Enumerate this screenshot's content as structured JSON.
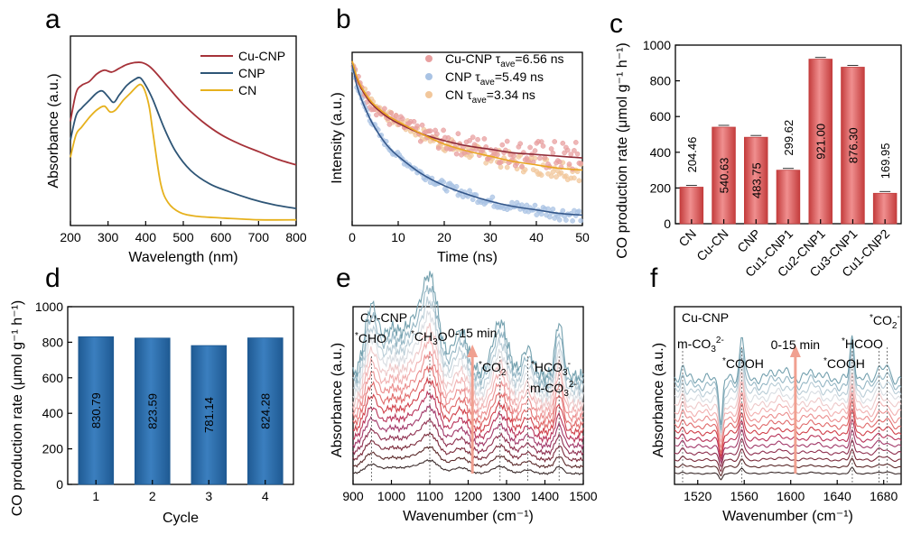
{
  "panels": [
    {
      "label": "a",
      "chart_data": {
        "type": "line",
        "xlabel": "Wavelength (nm)",
        "ylabel": "Absorbance (a.u.)",
        "xlim": [
          200,
          800
        ],
        "xticks": [
          200,
          300,
          400,
          500,
          600,
          700,
          800
        ],
        "series": [
          {
            "name": "Cu-CNP",
            "color": "#a63239",
            "x": [
              200,
              215,
              230,
              250,
              270,
              290,
              310,
              330,
              350,
              370,
              390,
              410,
              430,
              460,
              500,
              550,
              600,
              650,
              700,
              750,
              800
            ],
            "y": [
              0.55,
              0.7,
              0.74,
              0.76,
              0.8,
              0.82,
              0.81,
              0.83,
              0.85,
              0.86,
              0.86,
              0.84,
              0.8,
              0.73,
              0.64,
              0.55,
              0.48,
              0.43,
              0.39,
              0.35,
              0.32
            ]
          },
          {
            "name": "CNP",
            "color": "#2e5576",
            "x": [
              200,
              215,
              230,
              250,
              270,
              285,
              300,
              315,
              330,
              350,
              370,
              385,
              400,
              420,
              450,
              480,
              520,
              570,
              620,
              680,
              740,
              800
            ],
            "y": [
              0.45,
              0.58,
              0.62,
              0.66,
              0.7,
              0.71,
              0.68,
              0.65,
              0.69,
              0.74,
              0.77,
              0.78,
              0.74,
              0.66,
              0.51,
              0.39,
              0.29,
              0.22,
              0.18,
              0.14,
              0.11,
              0.09
            ]
          },
          {
            "name": "CN",
            "color": "#e6b11d",
            "x": [
              200,
              215,
              230,
              250,
              270,
              290,
              305,
              320,
              340,
              360,
              380,
              390,
              400,
              410,
              420,
              440,
              460,
              490,
              530,
              600,
              700,
              800
            ],
            "y": [
              0.36,
              0.48,
              0.52,
              0.57,
              0.61,
              0.63,
              0.6,
              0.61,
              0.66,
              0.7,
              0.74,
              0.74,
              0.7,
              0.62,
              0.48,
              0.22,
              0.12,
              0.07,
              0.05,
              0.04,
              0.03,
              0.03
            ]
          }
        ]
      }
    },
    {
      "label": "b",
      "chart_data": {
        "type": "scatter",
        "xlabel": "Time (ns)",
        "ylabel": "Intensity (a.u.)",
        "xlim": [
          0,
          50
        ],
        "xticks": [
          0,
          10,
          20,
          30,
          40,
          50
        ],
        "legend": [
          {
            "main": "Cu-CNP τ",
            "sub": "ave",
            "value": "=6.56 ns",
            "color": "#e89f9f"
          },
          {
            "main": "CNP τ",
            "sub": "ave",
            "value": "=5.49 ns",
            "color": "#a9c3e4"
          },
          {
            "main": "CN τ",
            "sub": "ave",
            "value": "=3.34 ns",
            "color": "#f2c79b"
          }
        ],
        "fits": [
          {
            "name": "Cu-CNP",
            "color": "#8e2a36",
            "t": [
              0,
              1,
              2,
              4,
              6,
              8,
              10,
              15,
              20,
              25,
              30,
              35,
              40,
              45,
              50
            ],
            "y": [
              1.0,
              0.9,
              0.84,
              0.76,
              0.71,
              0.67,
              0.64,
              0.58,
              0.54,
              0.51,
              0.49,
              0.47,
              0.46,
              0.45,
              0.44
            ]
          },
          {
            "name": "CNP",
            "color": "#34578a",
            "t": [
              0,
              1,
              2,
              4,
              6,
              8,
              10,
              15,
              20,
              25,
              30,
              35,
              40,
              45,
              50
            ],
            "y": [
              0.98,
              0.86,
              0.78,
              0.66,
              0.57,
              0.5,
              0.45,
              0.35,
              0.28,
              0.23,
              0.19,
              0.16,
              0.14,
              0.12,
              0.11
            ]
          },
          {
            "name": "CN",
            "color": "#e9a520",
            "t": [
              0,
              1,
              2,
              4,
              6,
              8,
              10,
              15,
              20,
              25,
              30,
              35,
              40,
              45,
              50
            ],
            "y": [
              1.0,
              0.91,
              0.85,
              0.77,
              0.72,
              0.68,
              0.65,
              0.58,
              0.52,
              0.48,
              0.45,
              0.42,
              0.4,
              0.38,
              0.37
            ]
          }
        ]
      }
    },
    {
      "label": "c",
      "chart_data": {
        "type": "bar",
        "ylabel": "CO production rate (μmol g⁻¹ h⁻¹)",
        "ylim": [
          0,
          1000
        ],
        "yticks": [
          0,
          200,
          400,
          600,
          800,
          1000
        ],
        "categories": [
          "CN",
          "Cu-CN",
          "CNP",
          "Cu1-CNP1",
          "Cu2-CNP1",
          "Cu3-CNP1",
          "Cu1-CNP2"
        ],
        "values": [
          204.46,
          540.63,
          483.75,
          299.62,
          921.0,
          876.3,
          169.95
        ],
        "labels": [
          "204.46",
          "540.63",
          "483.75",
          "299.62",
          "921.00",
          "876.30",
          "169.95"
        ],
        "bar_color": "#e05a5a"
      }
    },
    {
      "label": "d",
      "chart_data": {
        "type": "bar",
        "xlabel": "Cycle",
        "ylabel": "CO production rate (μmol g⁻¹ h⁻¹)",
        "ylim": [
          0,
          1000
        ],
        "yticks": [
          0,
          200,
          400,
          600,
          800,
          1000
        ],
        "categories": [
          "1",
          "2",
          "3",
          "4"
        ],
        "values": [
          830.79,
          823.59,
          781.14,
          824.28
        ],
        "labels": [
          "830.79",
          "823.59",
          "781.14",
          "824.28"
        ],
        "bar_color": "#2f6ea8"
      }
    },
    {
      "label": "e",
      "chart_data": {
        "type": "line",
        "xlabel": "Wavenumber (cm⁻¹)",
        "ylabel": "Absorbance (a.u.)",
        "xlim": [
          900,
          1500
        ],
        "xticks": [
          900,
          1000,
          1100,
          1200,
          1300,
          1400,
          1500
        ],
        "sample": "Cu-CNP",
        "time_label": "0-15 min",
        "peaks": [
          {
            "pos": 948,
            "sup": "*",
            "main": "CHO"
          },
          {
            "pos": 1100,
            "sup": "*",
            "main": "CH",
            "sub": "3",
            "tail": "O"
          },
          {
            "pos": 1283,
            "sup": "*",
            "main": "CO",
            "sub": "2",
            "charge": "-"
          },
          {
            "pos": 1355,
            "sup": "*",
            "main": "HCO",
            "sub": "3",
            "charge": "-"
          },
          {
            "pos": 1437,
            "main": "m-CO",
            "sub": "3",
            "charge": "2-"
          }
        ]
      }
    },
    {
      "label": "f",
      "chart_data": {
        "type": "line",
        "xlabel": "Wavenumber (cm⁻¹)",
        "ylabel": "Absorbance (a.u.)",
        "xlim": [
          1500,
          1695
        ],
        "xticks": [
          1520,
          1560,
          1600,
          1640,
          1680
        ],
        "sample": "Cu-CNP",
        "time_label": "0-15 min",
        "peaks": [
          {
            "pos": 1507,
            "main": "m-CO",
            "sub": "3",
            "charge": "2-"
          },
          {
            "pos": 1558,
            "sup": "*",
            "main": "COOH"
          },
          {
            "pos": 1653,
            "sup": "*",
            "main": "COOH"
          },
          {
            "pos": 1676,
            "sup": "*",
            "main": "HCOO"
          },
          {
            "pos": 1683,
            "sup": "*",
            "main": "CO",
            "sub": "2",
            "charge": "-"
          }
        ]
      }
    }
  ]
}
